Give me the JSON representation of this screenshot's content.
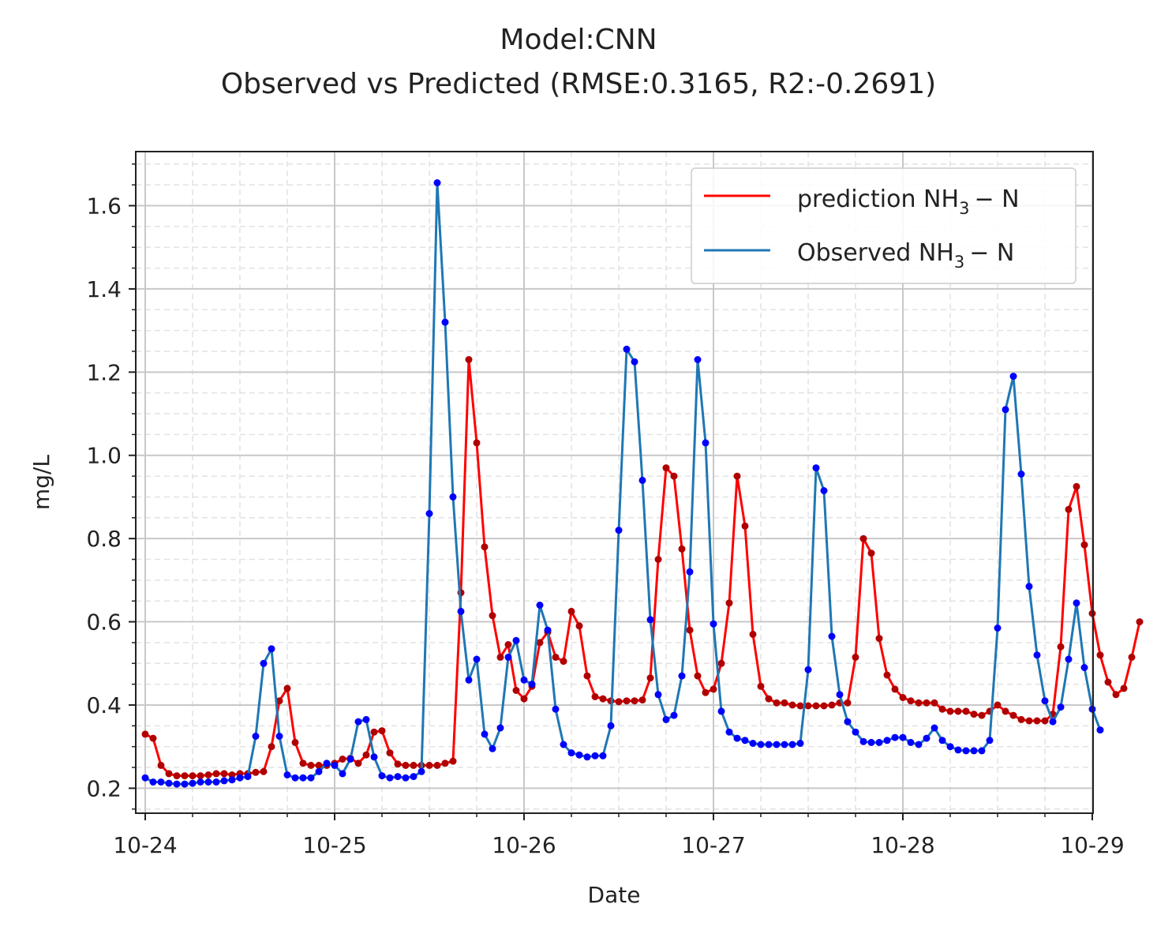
{
  "colors": {
    "prediction": "#ff0000",
    "prediction_marker": "#b00000",
    "observed": "#1f77b4",
    "observed_marker": "#0000ff",
    "major_grid": "#c8c8c8",
    "minor_grid": "#e2e2e2",
    "axis": "#222222"
  },
  "chart_data": {
    "type": "line",
    "title": "Model:CNN",
    "subtitle": "Observed vs Predicted (RMSE:0.3165, R2:-0.2691)",
    "xlabel": "Date",
    "ylabel": "mg/L",
    "x_ticks": [
      "10-24",
      "10-25",
      "10-26",
      "10-27",
      "10-28",
      "10-29"
    ],
    "y_ticks": [
      "0.2",
      "0.4",
      "0.6",
      "0.8",
      "1.0",
      "1.2",
      "1.4",
      "1.6"
    ],
    "xlim": [
      "10-24 00:00",
      "10-29 00:00"
    ],
    "ylim": [
      0.14,
      1.73
    ],
    "grid": "major and minor (minor dashed)",
    "legend_position": "top-right",
    "hour_step": 1,
    "hours_from": "10-24 00:00",
    "series": [
      {
        "name": "prediction NH3 − N",
        "legend_main": "prediction NH",
        "legend_sub": "3",
        "legend_tail": "− N",
        "values": [
          0.33,
          0.32,
          0.255,
          0.235,
          0.23,
          0.23,
          0.23,
          0.23,
          0.232,
          0.235,
          0.235,
          0.232,
          0.235,
          0.235,
          0.238,
          0.24,
          0.3,
          0.41,
          0.44,
          0.31,
          0.26,
          0.255,
          0.255,
          0.255,
          0.26,
          0.27,
          0.272,
          0.26,
          0.28,
          0.335,
          0.338,
          0.285,
          0.258,
          0.255,
          0.255,
          0.255,
          0.255,
          0.255,
          0.26,
          0.265,
          0.67,
          1.23,
          1.03,
          0.78,
          0.615,
          0.515,
          0.545,
          0.435,
          0.415,
          0.445,
          0.55,
          0.575,
          0.515,
          0.505,
          0.625,
          0.59,
          0.47,
          0.42,
          0.415,
          0.41,
          0.408,
          0.41,
          0.41,
          0.412,
          0.465,
          0.75,
          0.97,
          0.95,
          0.775,
          0.58,
          0.47,
          0.43,
          0.438,
          0.5,
          0.645,
          0.95,
          0.83,
          0.57,
          0.445,
          0.415,
          0.405,
          0.405,
          0.4,
          0.398,
          0.398,
          0.398,
          0.398,
          0.4,
          0.405,
          0.405,
          0.515,
          0.8,
          0.765,
          0.56,
          0.472,
          0.438,
          0.418,
          0.41,
          0.405,
          0.405,
          0.405,
          0.39,
          0.385,
          0.385,
          0.385,
          0.378,
          0.375,
          0.385,
          0.4,
          0.385,
          0.375,
          0.365,
          0.362,
          0.362,
          0.362,
          0.378,
          0.54,
          0.87,
          0.925,
          0.785,
          0.62,
          0.52,
          0.455,
          0.425,
          0.44,
          0.515,
          0.6
        ]
      },
      {
        "name": "Observed NH3 − N",
        "legend_main": "Observed NH",
        "legend_sub": "3",
        "legend_tail": "− N",
        "values": [
          0.225,
          0.215,
          0.215,
          0.212,
          0.21,
          0.21,
          0.212,
          0.215,
          0.215,
          0.215,
          0.218,
          0.22,
          0.225,
          0.228,
          0.325,
          0.5,
          0.535,
          0.325,
          0.232,
          0.225,
          0.225,
          0.225,
          0.24,
          0.26,
          0.255,
          0.235,
          0.27,
          0.36,
          0.365,
          0.275,
          0.23,
          0.225,
          0.228,
          0.225,
          0.228,
          0.24,
          0.86,
          1.655,
          1.32,
          0.9,
          0.625,
          0.46,
          0.51,
          0.33,
          0.295,
          0.345,
          0.515,
          0.555,
          0.46,
          0.45,
          0.64,
          0.58,
          0.39,
          0.305,
          0.285,
          0.28,
          0.275,
          0.278,
          0.278,
          0.35,
          0.82,
          1.255,
          1.225,
          0.94,
          0.605,
          0.425,
          0.365,
          0.375,
          0.47,
          0.72,
          1.23,
          1.03,
          0.595,
          0.385,
          0.335,
          0.32,
          0.315,
          0.308,
          0.305,
          0.305,
          0.305,
          0.305,
          0.305,
          0.308,
          0.485,
          0.97,
          0.915,
          0.565,
          0.425,
          0.36,
          0.335,
          0.312,
          0.31,
          0.31,
          0.315,
          0.322,
          0.322,
          0.31,
          0.305,
          0.32,
          0.345,
          0.315,
          0.3,
          0.292,
          0.29,
          0.29,
          0.29,
          0.315,
          0.585,
          1.11,
          1.19,
          0.955,
          0.685,
          0.52,
          0.41,
          0.36,
          0.395,
          0.51,
          0.645,
          0.49,
          0.39,
          0.34
        ]
      }
    ]
  }
}
